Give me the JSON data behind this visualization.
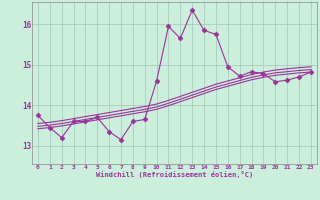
{
  "xlabel": "Windchill (Refroidissement éolien,°C)",
  "background_color": "#cceedd",
  "line_color": "#993399",
  "grid_color": "#aaccbb",
  "x_ticks": [
    0,
    1,
    2,
    3,
    4,
    5,
    6,
    7,
    8,
    9,
    10,
    11,
    12,
    13,
    14,
    15,
    16,
    17,
    18,
    19,
    20,
    21,
    22,
    23
  ],
  "y_ticks": [
    13,
    14,
    15,
    16
  ],
  "ylim": [
    12.55,
    16.55
  ],
  "xlim": [
    -0.5,
    23.5
  ],
  "series": [
    {
      "x": [
        0,
        1,
        2,
        3,
        4,
        5,
        6,
        7,
        8,
        9,
        10,
        11,
        12,
        13,
        14,
        15,
        16,
        17,
        18,
        19,
        20,
        21,
        22,
        23
      ],
      "y": [
        13.75,
        13.45,
        13.2,
        13.6,
        13.6,
        13.7,
        13.35,
        13.15,
        13.6,
        13.65,
        14.6,
        15.95,
        15.65,
        16.35,
        15.85,
        15.75,
        14.95,
        14.72,
        14.83,
        14.78,
        14.58,
        14.62,
        14.7,
        14.82
      ],
      "marker": "D",
      "markersize": 2.5,
      "linewidth": 0.8
    },
    {
      "x": [
        0,
        1,
        2,
        3,
        4,
        5,
        6,
        7,
        8,
        9,
        10,
        11,
        12,
        13,
        14,
        15,
        16,
        17,
        18,
        19,
        20,
        21,
        22,
        23
      ],
      "y": [
        13.55,
        13.58,
        13.62,
        13.67,
        13.72,
        13.77,
        13.82,
        13.87,
        13.92,
        13.97,
        14.03,
        14.12,
        14.22,
        14.32,
        14.42,
        14.52,
        14.6,
        14.68,
        14.76,
        14.82,
        14.87,
        14.9,
        14.93,
        14.95
      ],
      "marker": null,
      "markersize": 0,
      "linewidth": 0.8
    },
    {
      "x": [
        0,
        1,
        2,
        3,
        4,
        5,
        6,
        7,
        8,
        9,
        10,
        11,
        12,
        13,
        14,
        15,
        16,
        17,
        18,
        19,
        20,
        21,
        22,
        23
      ],
      "y": [
        13.48,
        13.51,
        13.55,
        13.6,
        13.65,
        13.7,
        13.75,
        13.8,
        13.85,
        13.9,
        13.96,
        14.05,
        14.15,
        14.25,
        14.35,
        14.45,
        14.53,
        14.61,
        14.69,
        14.75,
        14.8,
        14.83,
        14.86,
        14.88
      ],
      "marker": null,
      "markersize": 0,
      "linewidth": 0.8
    },
    {
      "x": [
        0,
        1,
        2,
        3,
        4,
        5,
        6,
        7,
        8,
        9,
        10,
        11,
        12,
        13,
        14,
        15,
        16,
        17,
        18,
        19,
        20,
        21,
        22,
        23
      ],
      "y": [
        13.42,
        13.45,
        13.49,
        13.54,
        13.59,
        13.64,
        13.69,
        13.74,
        13.79,
        13.84,
        13.9,
        13.99,
        14.09,
        14.19,
        14.29,
        14.39,
        14.47,
        14.55,
        14.63,
        14.69,
        14.74,
        14.77,
        14.8,
        14.82
      ],
      "marker": null,
      "markersize": 0,
      "linewidth": 0.8
    }
  ]
}
